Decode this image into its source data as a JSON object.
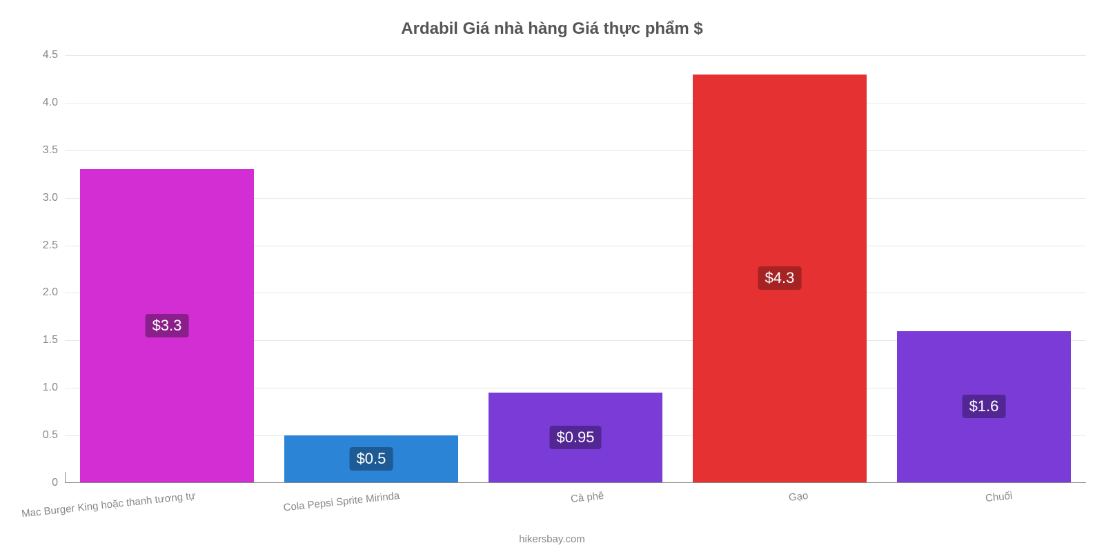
{
  "chart": {
    "type": "bar",
    "title": "Ardabil Giá nhà hàng Giá thực phẩm $",
    "title_color": "#555555",
    "title_fontsize": 24,
    "background_color": "#ffffff",
    "grid_color": "#e8e8e8",
    "axis_color": "#888888",
    "label_color": "#888888",
    "ylim": [
      0,
      4.5
    ],
    "yticks": [
      0,
      0.5,
      1.0,
      1.5,
      2.0,
      2.5,
      3.0,
      3.5,
      4.0,
      4.5
    ],
    "ytick_labels": [
      "0",
      "0.5",
      "1.0",
      "1.5",
      "2.0",
      "2.5",
      "3.0",
      "3.5",
      "4.0",
      "4.5"
    ],
    "bar_width_pct": 17,
    "value_label_fontsize": 22,
    "axis_label_fontsize": 16,
    "categories": [
      {
        "name": "Mac Burger King hoặc thanh tương tự",
        "value": 3.3,
        "display": "$3.3",
        "bar_color": "#d32ed3",
        "label_bg": "#8a1e8a"
      },
      {
        "name": "Cola Pepsi Sprite Mirinda",
        "value": 0.5,
        "display": "$0.5",
        "bar_color": "#2b84d6",
        "label_bg": "#1e5a94"
      },
      {
        "name": "Cà phê",
        "value": 0.95,
        "display": "$0.95",
        "bar_color": "#7b3bd6",
        "label_bg": "#522794"
      },
      {
        "name": "Gạo",
        "value": 4.3,
        "display": "$4.3",
        "bar_color": "#e53131",
        "label_bg": "#a52323"
      },
      {
        "name": "Chuối",
        "value": 1.6,
        "display": "$1.6",
        "bar_color": "#7b3bd6",
        "label_bg": "#522794"
      }
    ]
  },
  "footer": "hikersbay.com"
}
